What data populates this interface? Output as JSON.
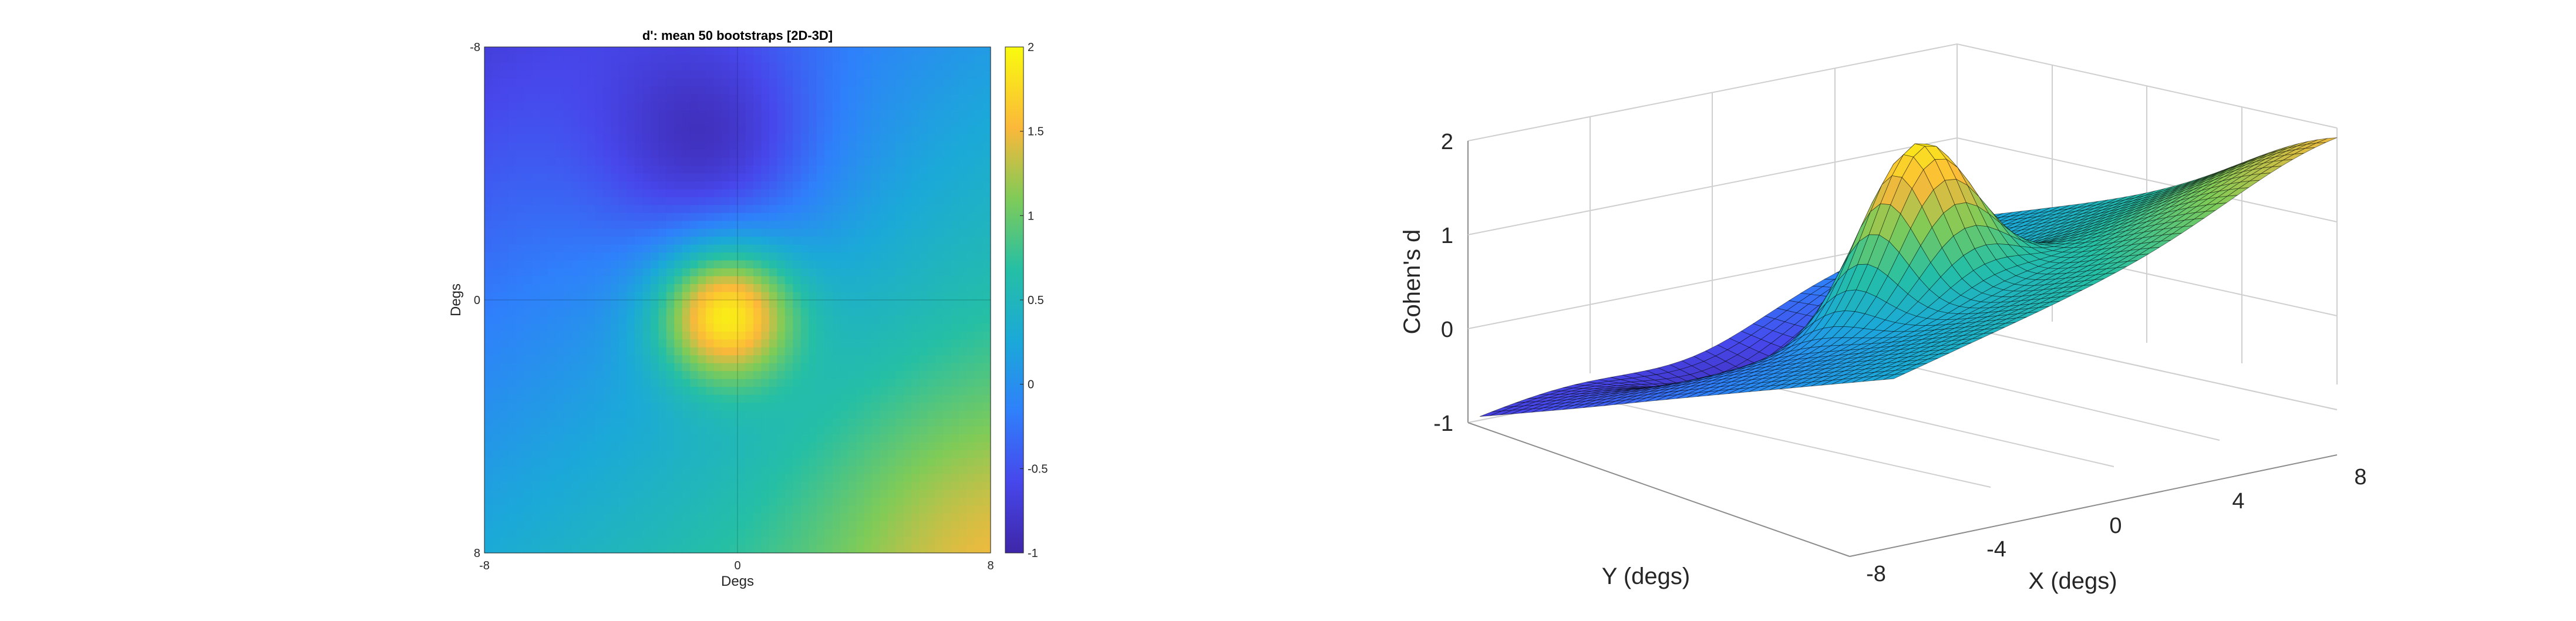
{
  "chart_data": [
    {
      "type": "heatmap",
      "title": "d': mean 50 bootstraps [2D-3D]",
      "xlabel": "Degs",
      "ylabel": "Degs",
      "x_ticks": [
        "-8",
        "0",
        "8"
      ],
      "y_ticks": [
        "-8",
        "0",
        "8"
      ],
      "xlim": [
        -8,
        8
      ],
      "ylim": [
        -8,
        8
      ],
      "y_direction": "reversed",
      "colorbar": {
        "range": [
          -1,
          2
        ],
        "ticks": [
          "2",
          "1.5",
          "1",
          "0.5",
          "0",
          "-0.5",
          "-1"
        ],
        "colormap": "parula"
      },
      "features": [
        {
          "kind": "peak",
          "x": -0.4,
          "y": 0.4,
          "value": 2.0
        },
        {
          "kind": "trough",
          "x": -0.8,
          "y": -4.8,
          "value": -0.6
        },
        {
          "kind": "shoulder",
          "x": 7.5,
          "y": 7.5,
          "value": 1.1
        }
      ],
      "grid": true
    },
    {
      "type": "surface",
      "xlabel": "X (degs)",
      "ylabel": "Y (degs)",
      "zlabel": "Cohen's d",
      "x_ticks": [
        "-8",
        "-4",
        "0",
        "4",
        "8"
      ],
      "z_ticks": [
        "2",
        "1",
        "0",
        "-1"
      ],
      "zlim": [
        -1,
        2
      ],
      "colormap": "parula",
      "grid": true
    }
  ],
  "colors": {
    "parula_low": "#3e26a8",
    "parula_mid": "#2ab4c2",
    "parula_high": "#f9fb0e"
  }
}
